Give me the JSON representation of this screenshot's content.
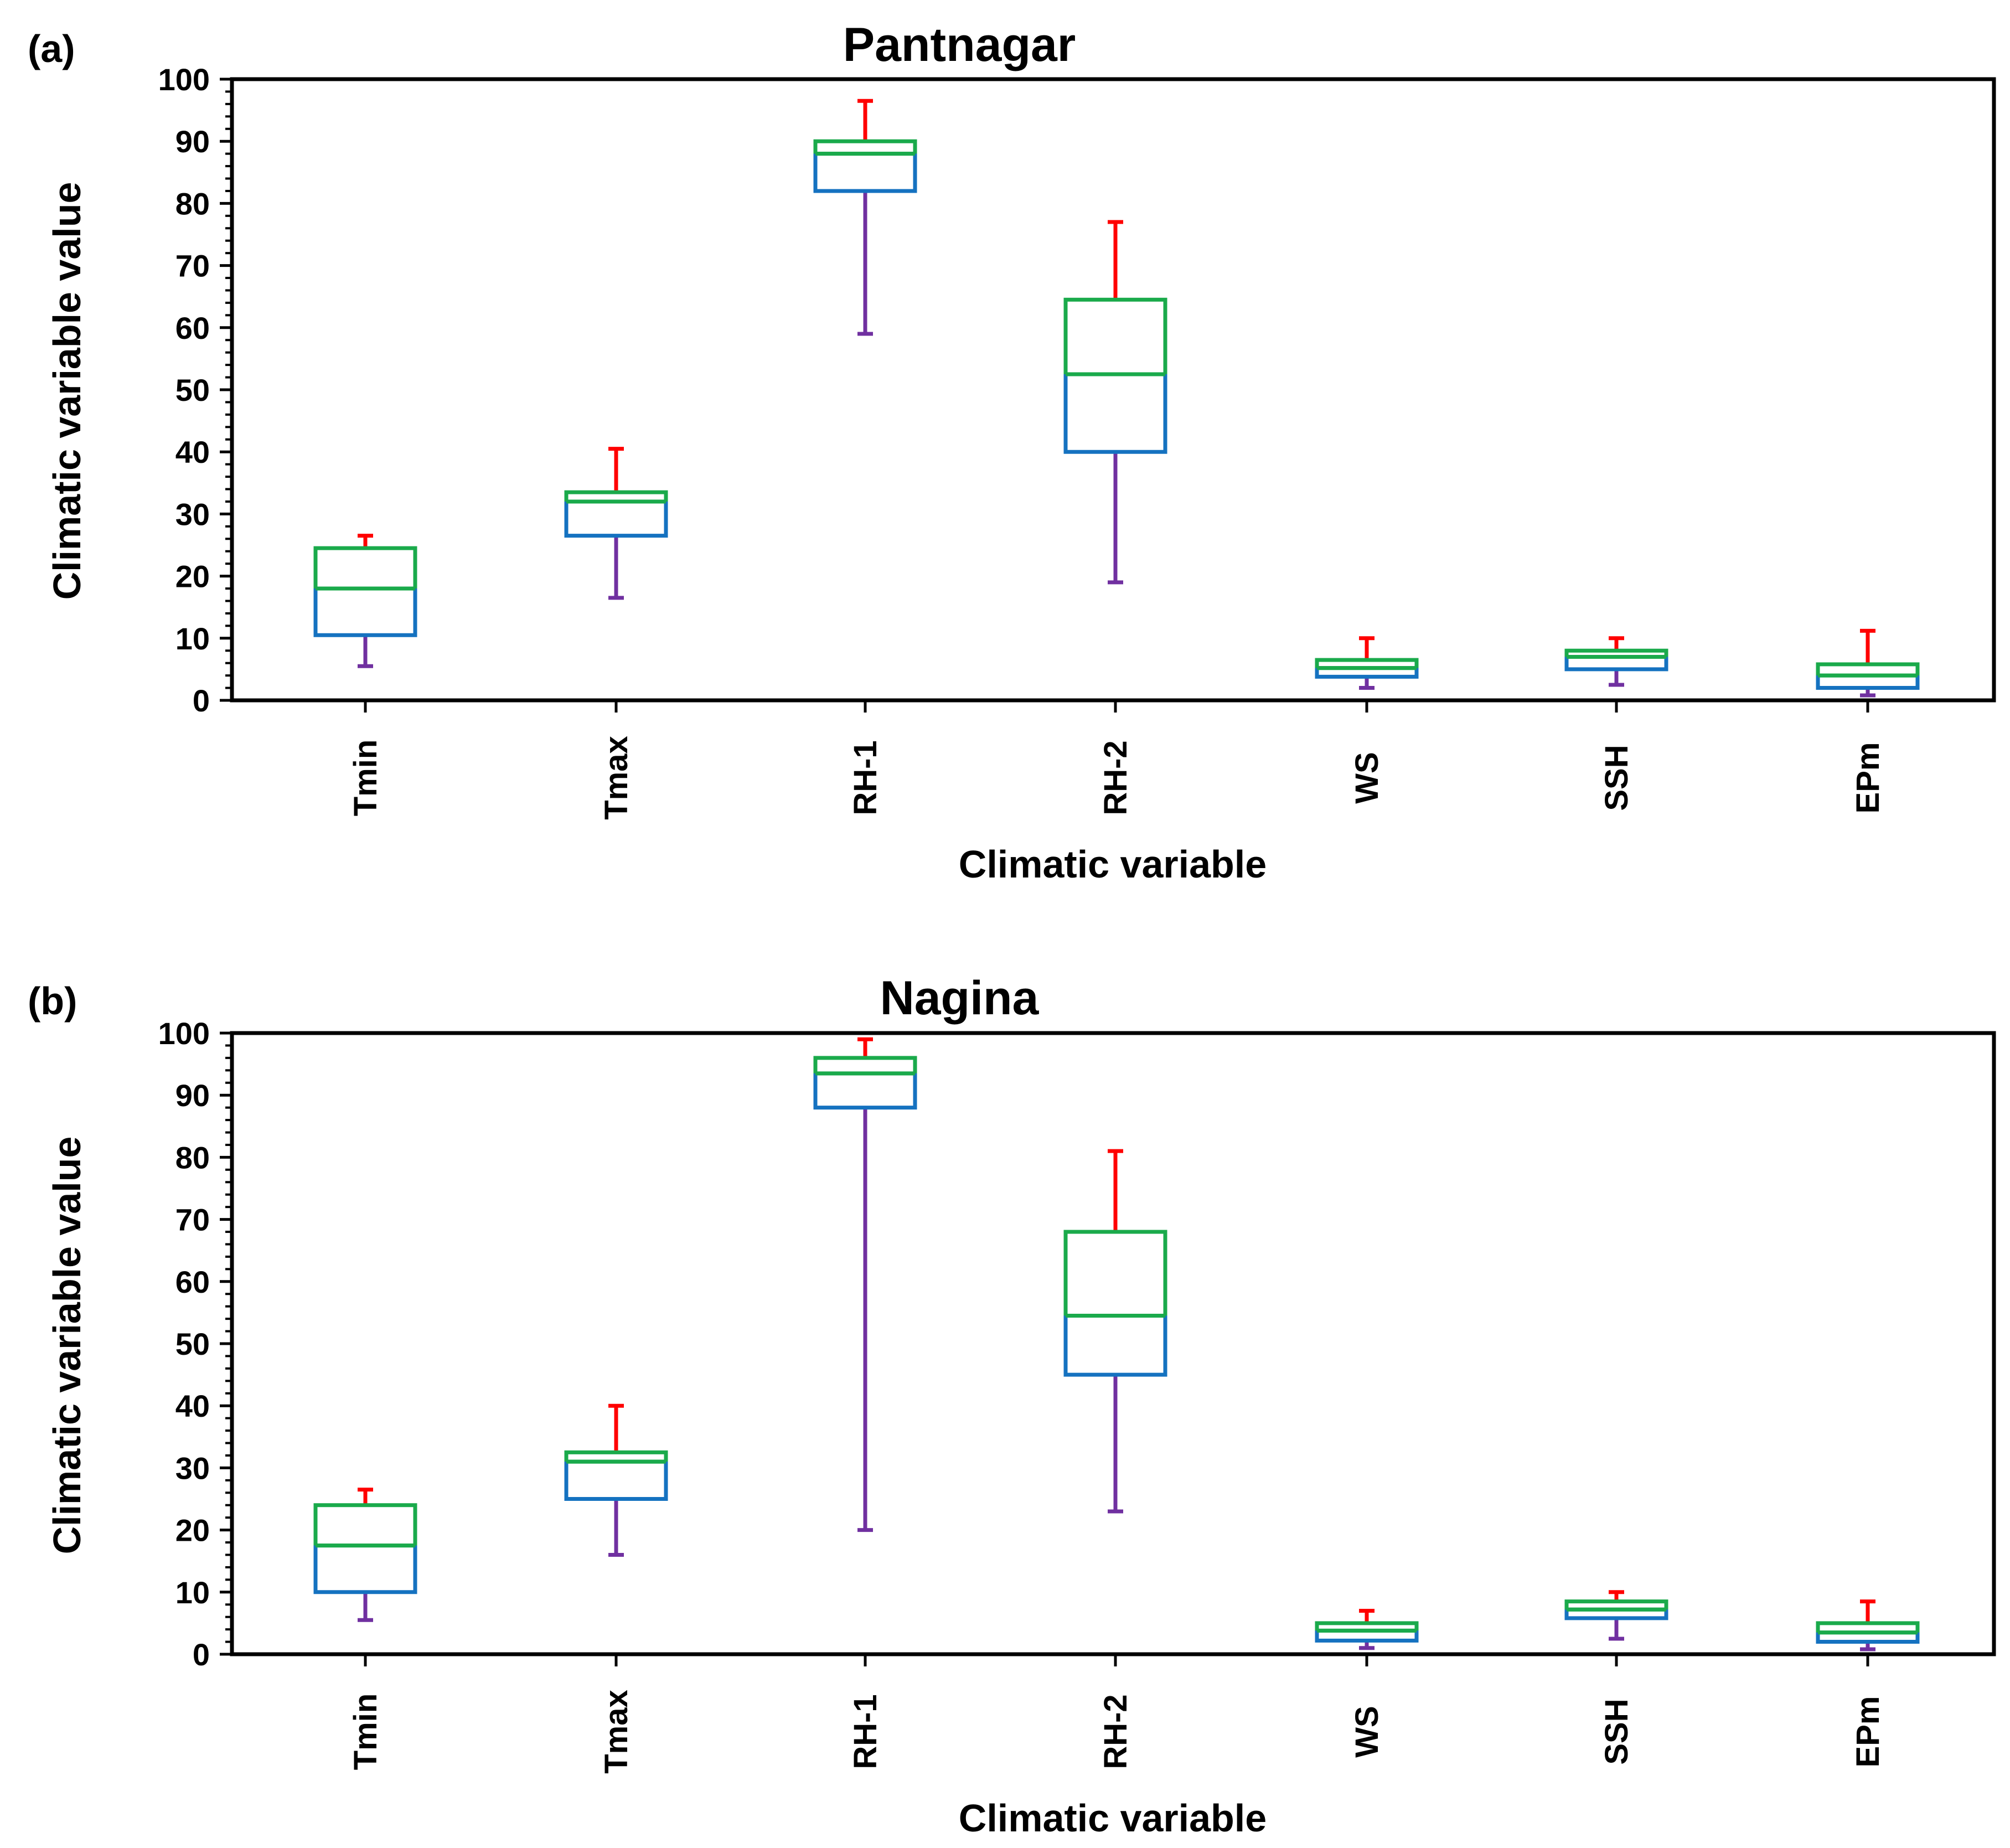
{
  "colors": {
    "upper_box": "#1aaa4b",
    "lower_box": "#1572c0",
    "upper_whisker": "#ff0000",
    "lower_whisker": "#7030a0",
    "axis": "#000000"
  },
  "chart_data": [
    {
      "type": "box",
      "panel_label": "(a)",
      "title": "Pantnagar",
      "xlabel": "Climatic variable",
      "ylabel": "Climatic variable value",
      "ylim": [
        0,
        100
      ],
      "yticks": [
        0,
        10,
        20,
        30,
        40,
        50,
        60,
        70,
        80,
        90,
        100
      ],
      "categories": [
        "Tmin",
        "Tmax",
        "RH-1",
        "RH-2",
        "WS",
        "SSH",
        "EPm"
      ],
      "boxes": [
        {
          "category": "Tmin",
          "min": 5.5,
          "q1": 10.5,
          "median": 18,
          "q3": 24.5,
          "max": 26.5
        },
        {
          "category": "Tmax",
          "min": 16.5,
          "q1": 26.5,
          "median": 32,
          "q3": 33.5,
          "max": 40.5
        },
        {
          "category": "RH-1",
          "min": 59,
          "q1": 82,
          "median": 88,
          "q3": 90,
          "max": 96.5
        },
        {
          "category": "RH-2",
          "min": 19,
          "q1": 40,
          "median": 52.5,
          "q3": 64.5,
          "max": 77
        },
        {
          "category": "WS",
          "min": 2,
          "q1": 3.8,
          "median": 5.2,
          "q3": 6.5,
          "max": 10
        },
        {
          "category": "SSH",
          "min": 2.5,
          "q1": 5,
          "median": 7,
          "q3": 8,
          "max": 10
        },
        {
          "category": "EPm",
          "min": 0.8,
          "q1": 2,
          "median": 4,
          "q3": 5.8,
          "max": 11.2
        }
      ]
    },
    {
      "type": "box",
      "panel_label": "(b)",
      "title": "Nagina",
      "xlabel": "Climatic variable",
      "ylabel": "Climatic variable value",
      "ylim": [
        0,
        100
      ],
      "yticks": [
        0,
        10,
        20,
        30,
        40,
        50,
        60,
        70,
        80,
        90,
        100
      ],
      "categories": [
        "Tmin",
        "Tmax",
        "RH-1",
        "RH-2",
        "WS",
        "SSH",
        "EPm"
      ],
      "boxes": [
        {
          "category": "Tmin",
          "min": 5.5,
          "q1": 10,
          "median": 17.5,
          "q3": 24,
          "max": 26.5
        },
        {
          "category": "Tmax",
          "min": 16,
          "q1": 25,
          "median": 31,
          "q3": 32.5,
          "max": 40
        },
        {
          "category": "RH-1",
          "min": 20,
          "q1": 88,
          "median": 93.5,
          "q3": 96,
          "max": 99
        },
        {
          "category": "RH-2",
          "min": 23,
          "q1": 45,
          "median": 54.5,
          "q3": 68,
          "max": 81
        },
        {
          "category": "WS",
          "min": 1,
          "q1": 2.2,
          "median": 3.8,
          "q3": 5,
          "max": 7
        },
        {
          "category": "SSH",
          "min": 2.5,
          "q1": 5.8,
          "median": 7.2,
          "q3": 8.5,
          "max": 10
        },
        {
          "category": "EPm",
          "min": 0.8,
          "q1": 2,
          "median": 3.5,
          "q3": 5,
          "max": 8.5
        }
      ]
    }
  ]
}
